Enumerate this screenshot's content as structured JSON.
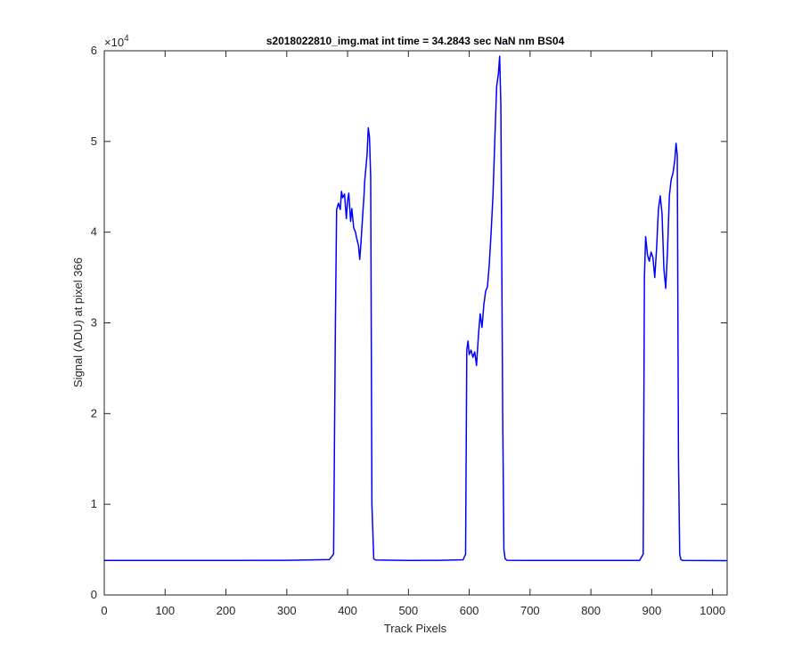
{
  "chart_data": {
    "type": "line",
    "title": "s2018022810_img.mat int time = 34.2843 sec  NaN nm BS04",
    "xlabel": "Track Pixels",
    "ylabel": "Signal (ADU) at pixel 366",
    "xlim": [
      0,
      1024
    ],
    "ylim": [
      0,
      60000
    ],
    "x_ticks": [
      0,
      100,
      200,
      300,
      400,
      500,
      600,
      700,
      800,
      900,
      1000
    ],
    "y_ticks": [
      0,
      1,
      2,
      3,
      4,
      5,
      6
    ],
    "y_multiplier_base": "×10",
    "y_multiplier_exp": "4",
    "grid": false,
    "box": true,
    "series": [
      {
        "color": "#0000ff",
        "x": [
          0,
          100,
          200,
          300,
          370,
          377,
          380,
          382,
          385,
          388,
          390,
          392,
          395,
          398,
          400,
          402,
          405,
          407,
          410,
          413,
          415,
          418,
          420,
          422,
          425,
          427,
          428,
          430,
          432,
          434,
          436,
          438,
          440,
          443,
          446,
          500,
          550,
          590,
          594,
          596,
          598,
          600,
          603,
          606,
          609,
          612,
          615,
          618,
          621,
          624,
          627,
          630,
          633,
          636,
          639,
          642,
          645,
          648,
          650,
          652,
          655,
          657,
          659,
          662,
          700,
          800,
          880,
          886,
          888,
          890,
          893,
          896,
          899,
          902,
          905,
          908,
          911,
          914,
          917,
          920,
          923,
          926,
          929,
          932,
          935,
          938,
          940,
          942,
          944,
          946,
          948,
          950,
          953,
          1024
        ],
        "y": [
          3800,
          3800,
          3800,
          3820,
          3900,
          4500,
          30000,
          42500,
          43200,
          42500,
          44500,
          43800,
          44200,
          41500,
          43500,
          44300,
          41200,
          42600,
          40500,
          40000,
          39300,
          38500,
          37000,
          38800,
          42000,
          44000,
          45500,
          47000,
          48500,
          51500,
          50500,
          46000,
          10000,
          4000,
          3850,
          3800,
          3820,
          3880,
          4500,
          27000,
          28000,
          26500,
          27000,
          26200,
          26800,
          25300,
          28500,
          31000,
          29500,
          32000,
          33500,
          34000,
          36500,
          40000,
          44000,
          50000,
          56000,
          57500,
          59400,
          54000,
          20000,
          5000,
          4000,
          3820,
          3800,
          3800,
          3810,
          4500,
          35000,
          39500,
          37500,
          36800,
          37800,
          37200,
          35000,
          38200,
          42500,
          44000,
          42000,
          36000,
          33800,
          38000,
          44000,
          45800,
          46500,
          48000,
          49800,
          48500,
          15000,
          4500,
          3900,
          3820,
          3800,
          3780
        ]
      }
    ]
  }
}
